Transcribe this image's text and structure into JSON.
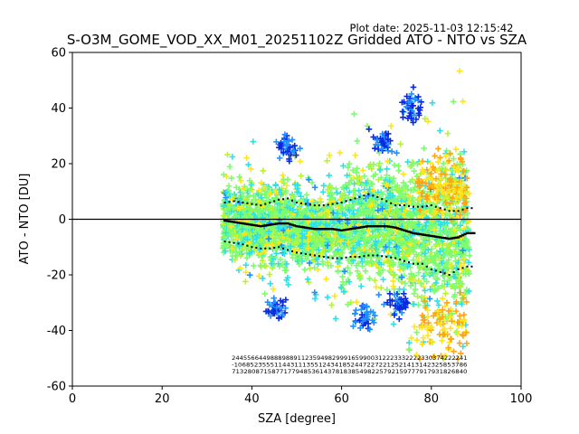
{
  "header": {
    "plot_date": "Plot date: 2025-11-03 12:15:42"
  },
  "chart_data": {
    "type": "scatter",
    "title": "S-O3M_GOME_VOD_XX_M01_20251102Z Gridded ATO - NTO vs SZA",
    "xlabel": "SZA [degree]",
    "ylabel": "ATO - NTO [DU]",
    "xlim": [
      0,
      100
    ],
    "ylim": [
      -60,
      60
    ],
    "xticks": [
      0,
      20,
      40,
      60,
      80,
      100
    ],
    "yticks": [
      -60,
      -40,
      -20,
      0,
      20,
      40,
      60
    ],
    "grid": false,
    "reference_line_y": 0,
    "scatter_x_range": [
      33.5,
      88.5
    ],
    "marker": "plus",
    "colors": {
      "dense": "#7cfc6e",
      "cyan": "#2fe0e8",
      "blue_light": "#1e90ff",
      "blue": "#0a2ae0",
      "yellow": "#ffe51a",
      "orange": "#ffa514",
      "lime": "#b9f22e",
      "median_line": "#000000"
    },
    "series": [
      {
        "name": "median",
        "style": "solid-steps",
        "x": [
          34,
          36,
          38,
          40,
          42,
          44,
          46,
          48,
          50,
          52,
          54,
          56,
          58,
          60,
          62,
          64,
          66,
          68,
          70,
          72,
          74,
          76,
          78,
          80,
          82,
          84,
          86,
          88
        ],
        "y": [
          -0.5,
          -1,
          -1.5,
          -2,
          -2.5,
          -2,
          -1.5,
          -1.5,
          -2.5,
          -3,
          -3.5,
          -3.5,
          -3.5,
          -4,
          -3.5,
          -3,
          -2.5,
          -2.5,
          -2.5,
          -3,
          -4,
          -5,
          -5.5,
          -6,
          -6.5,
          -7,
          -6.5,
          -5
        ]
      },
      {
        "name": "upper",
        "style": "dotted",
        "x": [
          34,
          36,
          38,
          40,
          42,
          44,
          46,
          48,
          50,
          52,
          54,
          56,
          58,
          60,
          62,
          64,
          66,
          68,
          70,
          72,
          74,
          76,
          78,
          80,
          82,
          84,
          86,
          88
        ],
        "y": [
          6,
          6.5,
          6,
          5.5,
          5,
          6,
          7,
          7.5,
          6,
          5.5,
          5,
          5,
          5.5,
          6,
          7,
          8,
          9,
          8,
          6.5,
          5,
          5,
          4.5,
          4.5,
          5,
          4,
          3,
          3,
          4
        ]
      },
      {
        "name": "lower",
        "style": "dotted",
        "x": [
          34,
          36,
          38,
          40,
          42,
          44,
          46,
          48,
          50,
          52,
          54,
          56,
          58,
          60,
          62,
          64,
          66,
          68,
          70,
          72,
          74,
          76,
          78,
          80,
          82,
          84,
          86,
          88
        ],
        "y": [
          -8,
          -8.5,
          -9,
          -10,
          -10.5,
          -10.5,
          -10,
          -11,
          -12,
          -12.5,
          -13,
          -13.5,
          -14,
          -14,
          -13.5,
          -13.5,
          -13,
          -13,
          -13.5,
          -14,
          -15,
          -16,
          -16,
          -18,
          -19,
          -20,
          -18,
          -17
        ]
      }
    ],
    "count_rows": [
      "2445566449888988911235949829991659900312223332222330374222241",
      "-1068523555114431113551243418524472272212521413142325853786",
      "71328087158771779485361437818385498225792159777917931826840"
    ],
    "count_rows_y": [
      -50.5,
      -53,
      -55.5
    ],
    "count_rows_x_range": [
      35.5,
      88
    ]
  }
}
